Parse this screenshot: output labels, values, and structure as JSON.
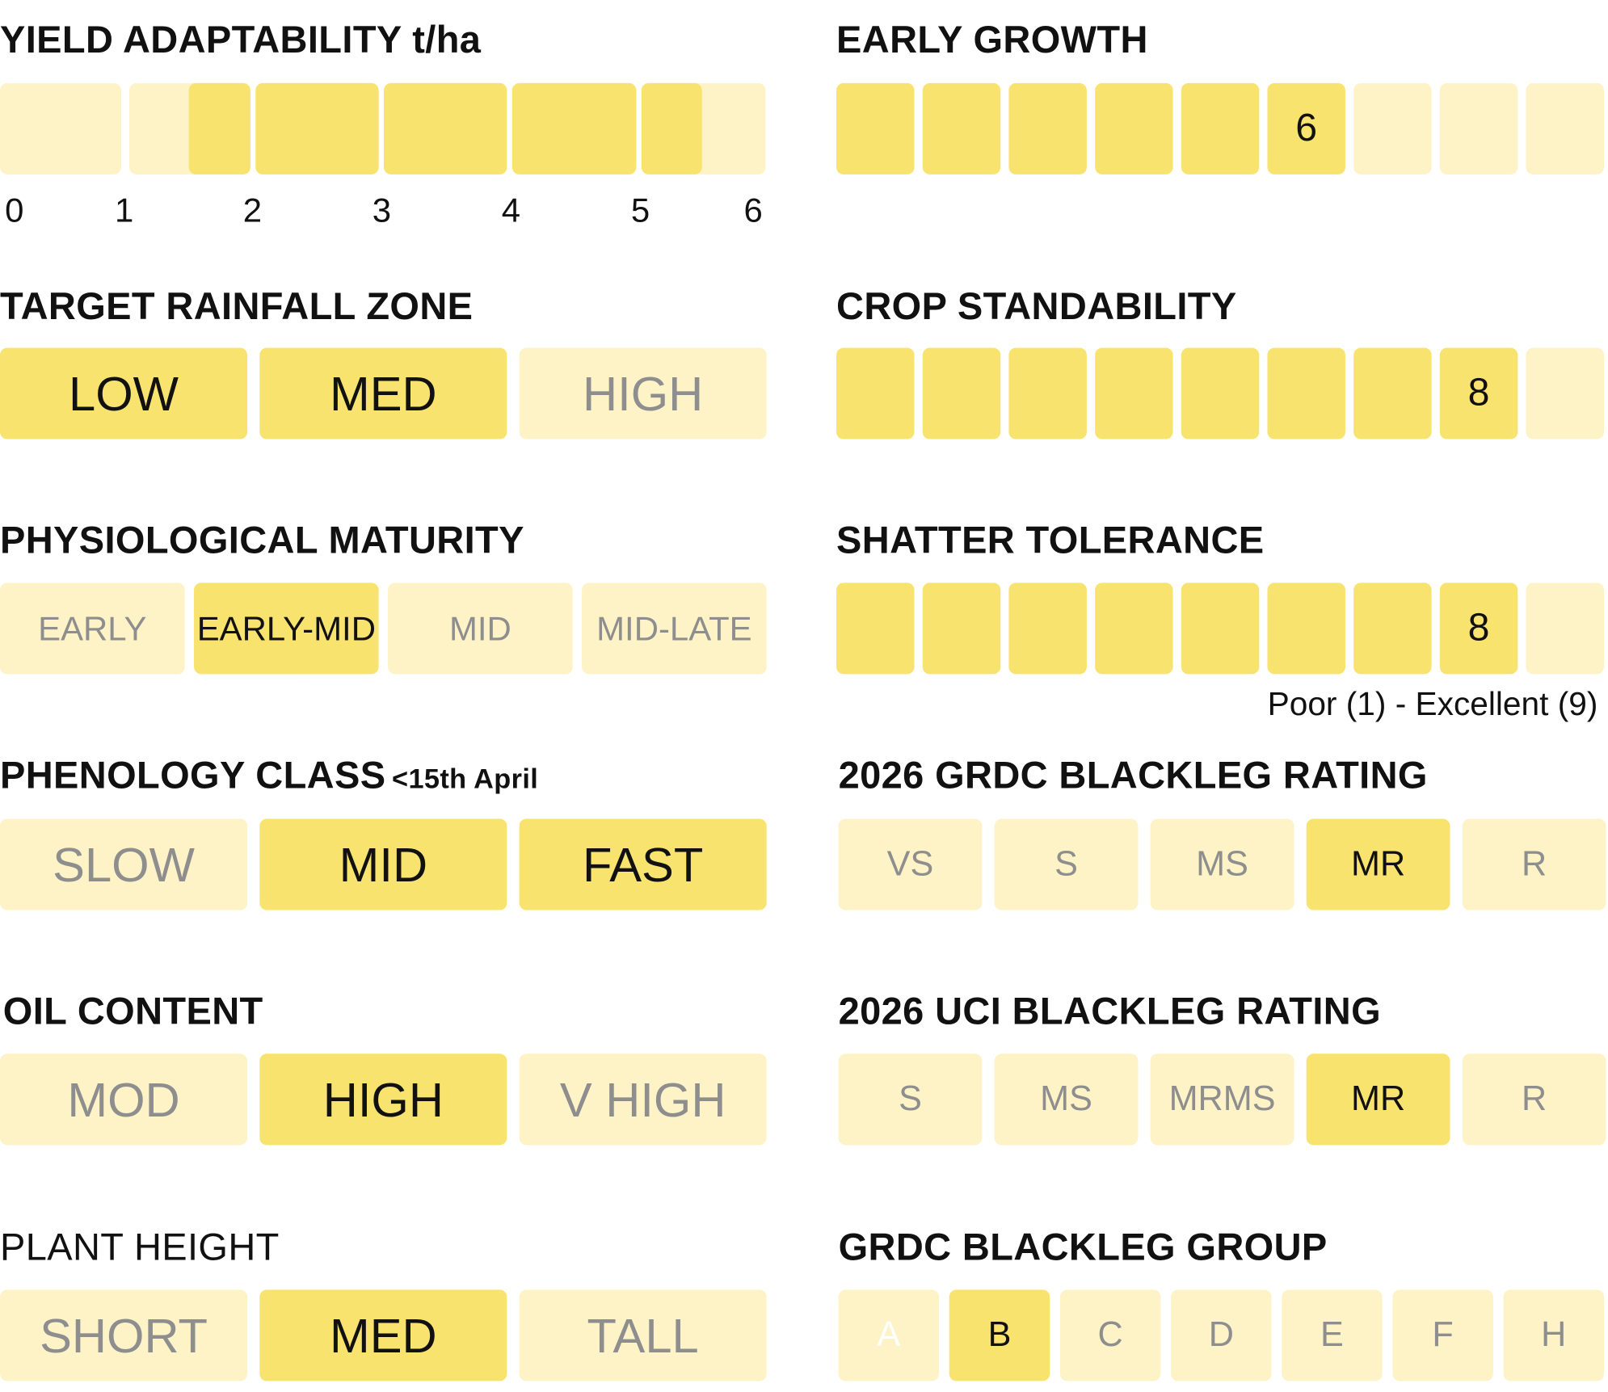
{
  "yield": {
    "title": "YIELD ADAPTABILITY t/ha",
    "ticks": [
      "0",
      "1",
      "2",
      "3",
      "4",
      "5",
      "6"
    ],
    "range": [
      1.5,
      5.5
    ],
    "axis": [
      0,
      6
    ]
  },
  "rainfall": {
    "title": "TARGET RAINFALL ZONE",
    "options": [
      "LOW",
      "MED",
      "HIGH"
    ],
    "selected": [
      "LOW",
      "MED"
    ]
  },
  "maturity": {
    "title": "PHYSIOLOGICAL MATURITY",
    "options": [
      "EARLY",
      "EARLY-MID",
      "MID",
      "MID-LATE"
    ],
    "selected": [
      "EARLY-MID"
    ]
  },
  "phenology": {
    "title": "PHENOLOGY CLASS",
    "subtitle": "<15th April",
    "options": [
      "SLOW",
      "MID",
      "FAST"
    ],
    "selected": [
      "MID",
      "FAST"
    ]
  },
  "oil": {
    "title": "OIL CONTENT",
    "options": [
      "MOD",
      "HIGH",
      "V HIGH"
    ],
    "selected": [
      "HIGH"
    ]
  },
  "height": {
    "title": "PLANT HEIGHT",
    "options": [
      "SHORT",
      "MED",
      "TALL"
    ],
    "selected": [
      "MED"
    ]
  },
  "early_growth": {
    "title": "EARLY GROWTH",
    "value": 6,
    "scale_max": 9,
    "value_label": "6"
  },
  "standability": {
    "title": "CROP STANDABILITY",
    "value": 8,
    "scale_max": 9,
    "value_label": "8"
  },
  "shatter": {
    "title": "SHATTER TOLERANCE",
    "value": 8,
    "scale_max": 9,
    "value_label": "8",
    "scale_note": "Poor (1) - Excellent (9)"
  },
  "grdc_rating": {
    "title": "2026 GRDC BLACKLEG RATING",
    "options": [
      "VS",
      "S",
      "MS",
      "MR",
      "R"
    ],
    "selected": [
      "MR"
    ]
  },
  "uci_rating": {
    "title": "2026 UCI BLACKLEG RATING",
    "options": [
      "S",
      "MS",
      "MRMS",
      "MR",
      "R"
    ],
    "selected": [
      "MR"
    ]
  },
  "grdc_group": {
    "title": "GRDC BLACKLEG GROUP",
    "options": [
      "A",
      "B",
      "C",
      "D",
      "E",
      "F",
      "H"
    ],
    "selected": [
      "B"
    ]
  },
  "colors": {
    "active": "#f9e36f",
    "inactive": "#fdf3c6",
    "inactive_text": "#8e8e8e",
    "text": "#111111"
  }
}
